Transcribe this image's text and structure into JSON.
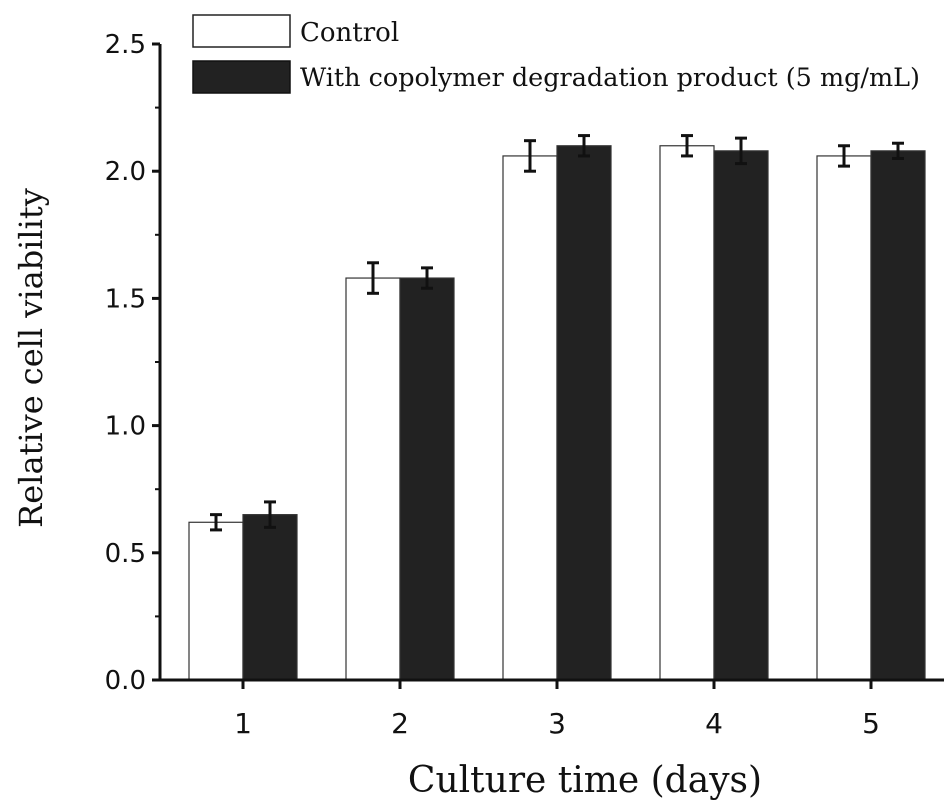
{
  "chart_data": {
    "type": "bar",
    "xlabel": "Culture time (days)",
    "ylabel": "Relative cell viability",
    "categories": [
      "1",
      "2",
      "3",
      "4",
      "5"
    ],
    "ylim": [
      0,
      2.5
    ],
    "yticks": [
      0.0,
      0.5,
      1.0,
      1.5,
      2.0,
      2.5
    ],
    "ytick_labels": [
      "0.0",
      "0.5",
      "1.0",
      "1.5",
      "2.0",
      "2.5"
    ],
    "grid": false,
    "legend_position": "top",
    "series": [
      {
        "name": "Control",
        "color": "#ffffff",
        "values": [
          0.62,
          1.58,
          2.06,
          2.1,
          2.06
        ],
        "errors": [
          0.03,
          0.06,
          0.06,
          0.04,
          0.04
        ]
      },
      {
        "name": "With copolymer degradation product (5 mg/mL)",
        "color": "#222222",
        "values": [
          0.65,
          1.58,
          2.1,
          2.08,
          2.08
        ],
        "errors": [
          0.05,
          0.04,
          0.04,
          0.05,
          0.03
        ]
      }
    ]
  }
}
